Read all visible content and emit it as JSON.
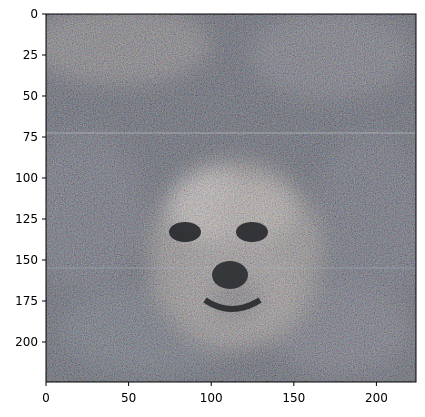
{
  "figure": {
    "type": "image-plot",
    "description_visible": "",
    "axes": {
      "x_ticks": [
        "0",
        "50",
        "100",
        "150",
        "200"
      ],
      "y_ticks": [
        "0",
        "25",
        "50",
        "75",
        "100",
        "125",
        "150",
        "175",
        "200"
      ]
    },
    "image": {
      "extent_x": [
        0,
        224
      ],
      "extent_y": [
        0,
        224
      ],
      "palette": {
        "dark": "#2b2f36",
        "mid": "#6f6b66",
        "light": "#c9c2b8",
        "blue": "#5a74a8",
        "green": "#5c8b62",
        "magenta": "#8b4f7a",
        "tan": "#b59a7a"
      }
    }
  }
}
